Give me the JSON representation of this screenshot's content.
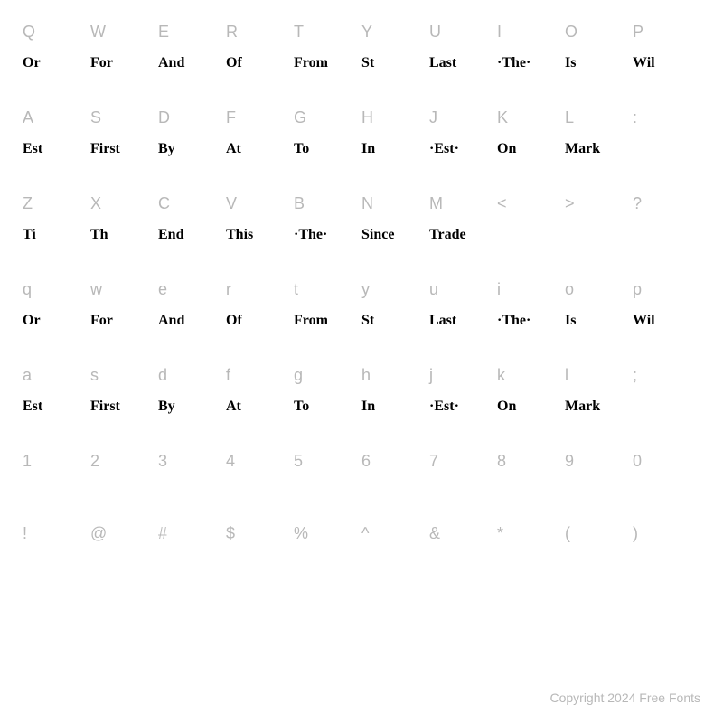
{
  "rows": [
    {
      "keys": [
        "Q",
        "W",
        "E",
        "R",
        "T",
        "Y",
        "U",
        "I",
        "O",
        "P"
      ],
      "glyphs": [
        "Or",
        "For",
        "And",
        "Of",
        "From",
        "St",
        "Last",
        "·The·",
        "Is",
        "Wil"
      ]
    },
    {
      "keys": [
        "A",
        "S",
        "D",
        "F",
        "G",
        "H",
        "J",
        "K",
        "L",
        ":"
      ],
      "glyphs": [
        "Est",
        "First",
        "By",
        "At",
        "To",
        "In",
        "·Est·",
        "On",
        "Mark",
        ""
      ]
    },
    {
      "keys": [
        "Z",
        "X",
        "C",
        "V",
        "B",
        "N",
        "M",
        "<",
        ">",
        "?"
      ],
      "glyphs": [
        "Ti",
        "Th",
        "End",
        "This",
        "·The·",
        "Since",
        "Trade",
        "",
        "",
        ""
      ]
    },
    {
      "keys": [
        "q",
        "w",
        "e",
        "r",
        "t",
        "y",
        "u",
        "i",
        "o",
        "p"
      ],
      "glyphs": [
        "Or",
        "For",
        "And",
        "Of",
        "From",
        "St",
        "Last",
        "·The·",
        "Is",
        "Wil"
      ]
    },
    {
      "keys": [
        "a",
        "s",
        "d",
        "f",
        "g",
        "h",
        "j",
        "k",
        "l",
        ";"
      ],
      "glyphs": [
        "Est",
        "First",
        "By",
        "At",
        "To",
        "In",
        "·Est·",
        "On",
        "Mark",
        ""
      ]
    },
    {
      "keys": [
        "1",
        "2",
        "3",
        "4",
        "5",
        "6",
        "7",
        "8",
        "9",
        "0"
      ],
      "glyphs": [
        "",
        "",
        "",
        "",
        "",
        "",
        "",
        "",
        "",
        ""
      ]
    },
    {
      "keys": [
        "!",
        "@",
        "#",
        "$",
        "%",
        "^",
        "&",
        "*",
        "(",
        ")"
      ],
      "glyphs": [
        "",
        "",
        "",
        "",
        "",
        "",
        "",
        "",
        "",
        ""
      ]
    }
  ],
  "footer": "Copyright 2024 Free Fonts",
  "colors": {
    "key_label": "#b8b8b8",
    "glyph": "#000000",
    "background": "#ffffff",
    "footer": "#b8b8b8"
  },
  "typography": {
    "key_fontsize": 18,
    "glyph_fontsize": 16,
    "footer_fontsize": 14
  }
}
